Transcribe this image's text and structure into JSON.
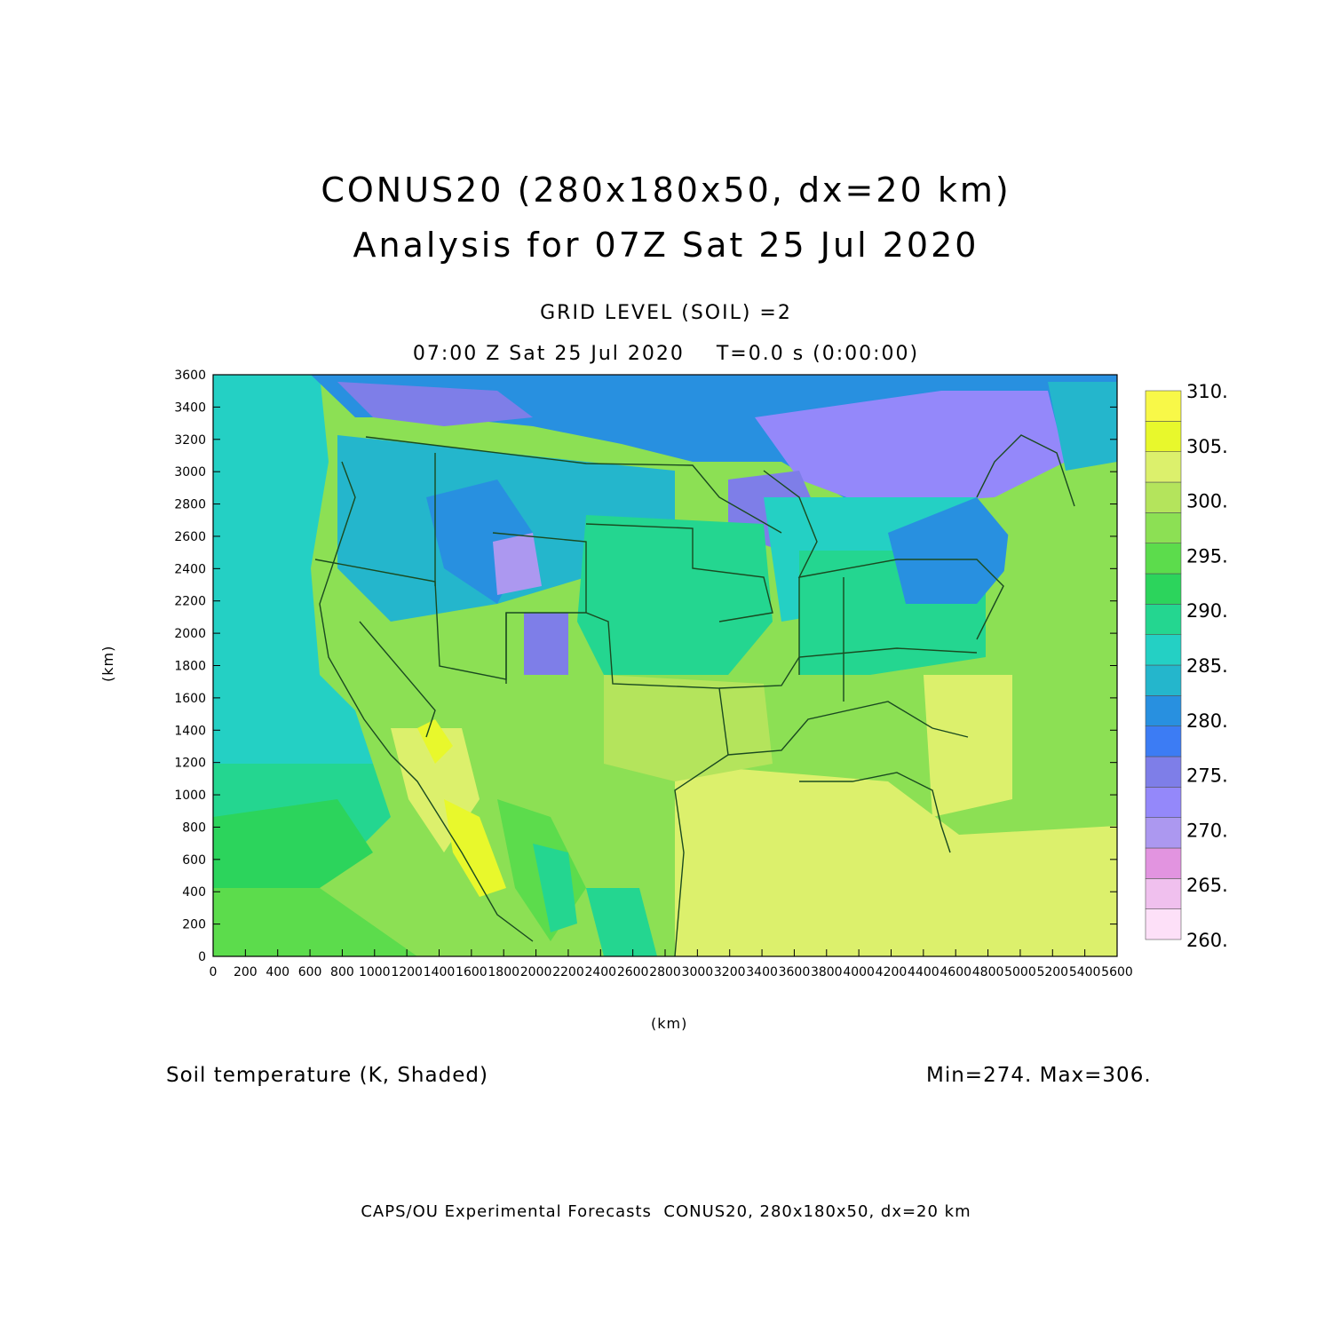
{
  "header": {
    "title_line1": "CONUS20 (280x180x50, dx=20 km)",
    "title_line2": "Analysis for 07Z Sat 25 Jul 2020",
    "grid_level": "GRID LEVEL (SOIL) =2",
    "valid_time": "07:00 Z Sat 25 Jul 2020    T=0.0 s (0:00:00)"
  },
  "axes": {
    "x_label": "(km)",
    "y_label": "(km)",
    "x_ticks": [
      "0",
      "200",
      "400",
      "600",
      "800",
      "1000",
      "1200",
      "1400",
      "1600",
      "1800",
      "2000",
      "2200",
      "2400",
      "2600",
      "2800",
      "3000",
      "3200",
      "3400",
      "3600",
      "3800",
      "4000",
      "4200",
      "4400",
      "4600",
      "4800",
      "5000",
      "5200",
      "5400",
      "5600"
    ],
    "y_ticks": [
      "0",
      "200",
      "400",
      "600",
      "800",
      "1000",
      "1200",
      "1400",
      "1600",
      "1800",
      "2000",
      "2200",
      "2400",
      "2600",
      "2800",
      "3000",
      "3200",
      "3400",
      "3600"
    ],
    "x_range": [
      0,
      5600
    ],
    "y_range": [
      0,
      3600
    ]
  },
  "colorbar": {
    "labels": [
      "260.",
      "265.",
      "270.",
      "275.",
      "280.",
      "285.",
      "290.",
      "295.",
      "300.",
      "305.",
      "310."
    ],
    "colors": [
      "#fde0f8",
      "#f0c0ee",
      "#e294e0",
      "#ac98f0",
      "#9488fa",
      "#7e7ee8",
      "#3c7cf4",
      "#2890e0",
      "#24b6cc",
      "#24d0c4",
      "#24d690",
      "#2cd45c",
      "#5cdc4c",
      "#8ce054",
      "#b4e45c",
      "#dcf06c",
      "#e8f82c",
      "#f8f848"
    ]
  },
  "field": {
    "variable": "Soil temperature (K, Shaded)",
    "minmax": "Min=274. Max=306."
  },
  "footer": {
    "credit": "CAPS/OU Experimental Forecasts  CONUS20, 280x180x50, dx=20 km"
  }
}
